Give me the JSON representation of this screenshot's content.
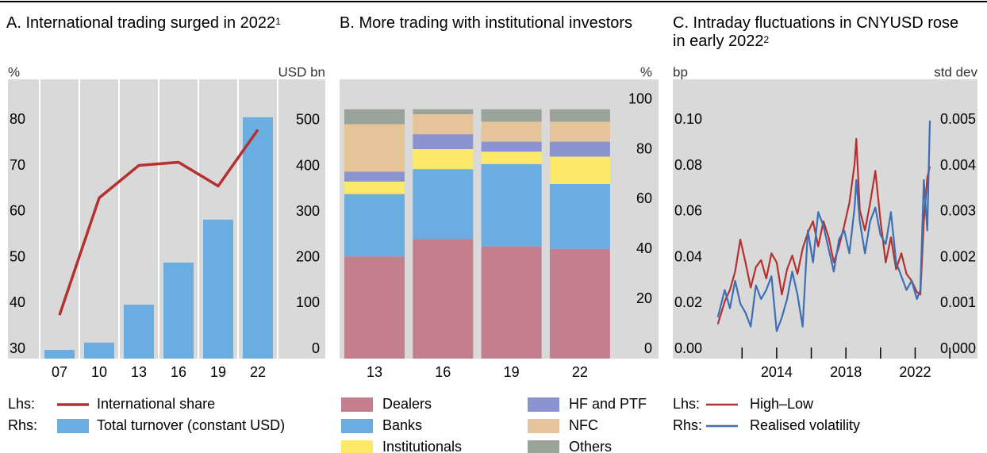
{
  "chart_data": [
    {
      "type": "bar_line",
      "title": "A. International trading surged in 2022",
      "title_note": "1",
      "y_unit": "%",
      "y2_unit": "USD bn",
      "categories": [
        "07",
        "10",
        "13",
        "16",
        "19",
        "22"
      ],
      "ylim": [
        30,
        91
      ],
      "yticks": [
        30,
        40,
        50,
        60,
        70,
        80
      ],
      "y2lim": [
        0,
        611
      ],
      "y2ticks": [
        0,
        100,
        200,
        300,
        400,
        500
      ],
      "series": [
        {
          "name": "International share",
          "legend_prefix": "Lhs:",
          "type": "line",
          "color": "#b5312f",
          "values": [
            39.5,
            65.1,
            72.2,
            72.9,
            67.7,
            80.0
          ]
        },
        {
          "name": "Total turnover (constant USD)",
          "legend_prefix": "Rhs:",
          "type": "bar",
          "axis": "y2",
          "color": "#6aade0",
          "values": [
            19,
            35,
            118,
            210,
            304,
            528
          ]
        }
      ]
    },
    {
      "type": "stacked_bar",
      "title": "B. More trading with institutional investors",
      "y_unit": "%",
      "categories": [
        "13",
        "16",
        "19",
        "22"
      ],
      "ylim": [
        0,
        112
      ],
      "yticks": [
        0,
        20,
        40,
        60,
        80,
        100
      ],
      "series": [
        {
          "name": "Dealers",
          "color": "#c47f8e",
          "values": [
            41,
            48,
            45,
            44
          ]
        },
        {
          "name": "Banks",
          "color": "#6aade0",
          "values": [
            25,
            28,
            33,
            26
          ]
        },
        {
          "name": "Institutionals",
          "color": "#fce96a",
          "values": [
            5,
            8,
            5,
            11
          ]
        },
        {
          "name": "HF and PTF",
          "color": "#8a93cf",
          "values": [
            4,
            6,
            4,
            6
          ]
        },
        {
          "name": "NFC",
          "color": "#e6c49a",
          "values": [
            19,
            8,
            8,
            8
          ]
        },
        {
          "name": "Others",
          "color": "#9aa39a",
          "values": [
            6,
            2,
            5,
            5
          ]
        }
      ]
    },
    {
      "type": "line",
      "title": "C. Intraday fluctuations in CNYUSD rose in early 2022",
      "title_note": "2",
      "y_unit": "bp",
      "y2_unit": "std dev",
      "x": [
        2010.6,
        2011,
        2011.3,
        2011.6,
        2011.9,
        2012.2,
        2012.5,
        2012.8,
        2013.1,
        2013.4,
        2013.7,
        2014,
        2014.3,
        2014.6,
        2014.9,
        2015.2,
        2015.5,
        2015.8,
        2016.1,
        2016.4,
        2016.7,
        2017,
        2017.3,
        2017.6,
        2017.9,
        2018.2,
        2018.5,
        2018.6,
        2018.8,
        2019.1,
        2019.4,
        2019.7,
        2020,
        2020.3,
        2020.6,
        2020.9,
        2021.2,
        2021.5,
        2021.8,
        2022.1,
        2022.3,
        2022.5,
        2022.7,
        2022.85
      ],
      "xlim": [
        2008,
        2025.6
      ],
      "xticks": [
        2014,
        2018,
        2022
      ],
      "xminorticks": [
        2012,
        2016,
        2020,
        2024
      ],
      "ylim": [
        0,
        0.122
      ],
      "yticks": [
        {
          "value": 0,
          "label": "0.00"
        },
        {
          "value": 0.02,
          "label": "0.02"
        },
        {
          "value": 0.04,
          "label": "0.04"
        },
        {
          "value": 0.06,
          "label": "0.06"
        },
        {
          "value": 0.08,
          "label": "0.08"
        },
        {
          "value": 0.1,
          "label": "0.10"
        }
      ],
      "y2lim": [
        0,
        0.0061
      ],
      "y2ticks": [
        {
          "value": 0,
          "label": "0.000"
        },
        {
          "value": 0.001,
          "label": "0.001"
        },
        {
          "value": 0.002,
          "label": "0.002"
        },
        {
          "value": 0.003,
          "label": "0.003"
        },
        {
          "value": 0.004,
          "label": "0.004"
        },
        {
          "value": 0.005,
          "label": "0.005"
        }
      ],
      "series": [
        {
          "name": "High–Low",
          "legend_prefix": "Lhs:",
          "color": "#b5312f",
          "values": [
            0.015,
            0.025,
            0.03,
            0.038,
            0.052,
            0.042,
            0.031,
            0.04,
            0.043,
            0.035,
            0.046,
            0.042,
            0.028,
            0.039,
            0.045,
            0.037,
            0.048,
            0.055,
            0.06,
            0.049,
            0.06,
            0.053,
            0.042,
            0.049,
            0.058,
            0.068,
            0.085,
            0.096,
            0.065,
            0.056,
            0.068,
            0.082,
            0.06,
            0.042,
            0.053,
            0.039,
            0.046,
            0.037,
            0.034,
            0.029,
            0.028,
            0.06,
            0.079,
            0.084
          ]
        },
        {
          "name": "Realised volatility",
          "legend_prefix": "Rhs:",
          "axis": "y2",
          "color": "#3c6fb6",
          "values": [
            0.0009,
            0.0015,
            0.0011,
            0.0017,
            0.0012,
            0.001,
            0.0007,
            0.0016,
            0.0013,
            0.0015,
            0.0018,
            0.0006,
            0.0009,
            0.0013,
            0.0019,
            0.0014,
            0.0007,
            0.0028,
            0.0021,
            0.0032,
            0.0029,
            0.0024,
            0.0019,
            0.0026,
            0.0028,
            0.0023,
            0.0033,
            0.0039,
            0.003,
            0.0023,
            0.003,
            0.0033,
            0.0027,
            0.0025,
            0.0032,
            0.0021,
            0.0018,
            0.0015,
            0.0017,
            0.0013,
            0.0015,
            0.0039,
            0.0028,
            0.0052
          ]
        }
      ]
    }
  ]
}
